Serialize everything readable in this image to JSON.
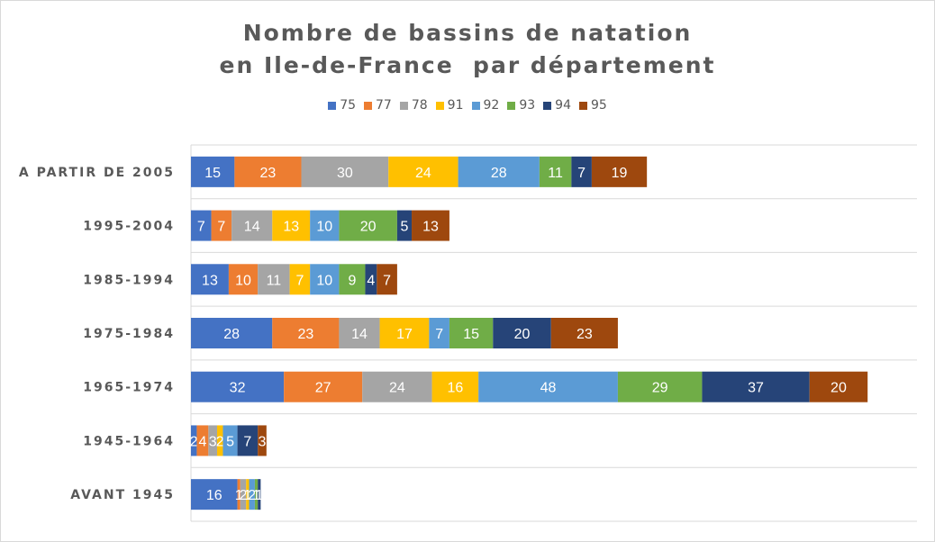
{
  "chart_data": {
    "type": "bar",
    "orientation": "horizontal",
    "stacked": true,
    "title_lines": [
      "Nombre de bassins de natation",
      "en Ile-de-France  par département"
    ],
    "legend_position": "top",
    "grid": true,
    "categories": [
      "AVANT 1945",
      "1945-1964",
      "1965-1974",
      "1975-1984",
      "1985-1994",
      "1995-2004",
      "A PARTIR DE 2005"
    ],
    "series": [
      {
        "name": "75",
        "color": "#4472c4",
        "values": [
          16,
          2,
          32,
          28,
          13,
          7,
          15
        ]
      },
      {
        "name": "77",
        "color": "#ed7d31",
        "values": [
          1,
          4,
          27,
          23,
          10,
          7,
          23
        ]
      },
      {
        "name": "78",
        "color": "#a5a5a5",
        "values": [
          2,
          3,
          24,
          14,
          11,
          14,
          30
        ]
      },
      {
        "name": "91",
        "color": "#ffc000",
        "values": [
          1,
          2,
          16,
          17,
          7,
          13,
          24
        ]
      },
      {
        "name": "92",
        "color": "#5b9bd5",
        "values": [
          2,
          5,
          48,
          7,
          10,
          10,
          28
        ]
      },
      {
        "name": "93",
        "color": "#70ad47",
        "values": [
          1,
          0,
          29,
          15,
          9,
          20,
          11
        ]
      },
      {
        "name": "94",
        "color": "#264478",
        "values": [
          1,
          7,
          37,
          20,
          4,
          5,
          7
        ]
      },
      {
        "name": "95",
        "color": "#9e480e",
        "values": [
          0,
          3,
          20,
          23,
          7,
          13,
          19
        ]
      }
    ],
    "xlim": [
      0,
      250
    ]
  }
}
